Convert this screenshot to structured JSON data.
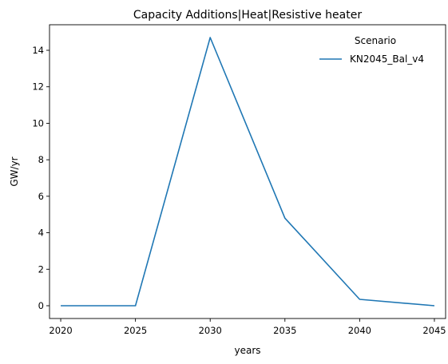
{
  "chart_data": {
    "type": "line",
    "title": "Capacity Additions|Heat|Resistive heater",
    "xlabel": "years",
    "ylabel": "GW/yr",
    "x": [
      2020,
      2025,
      2030,
      2035,
      2040,
      2045
    ],
    "xticks": [
      "2020",
      "2025",
      "2030",
      "2035",
      "2040",
      "2045"
    ],
    "yticks": [
      "0",
      "2",
      "4",
      "6",
      "8",
      "10",
      "12",
      "14"
    ],
    "xlim": [
      2019.25,
      2045.75
    ],
    "ylim": [
      -0.7,
      15.4
    ],
    "grid": false,
    "legend": {
      "title": "Scenario",
      "placement": "top-right"
    },
    "series": [
      {
        "name": "KN2045_Bal_v4",
        "color": "#1f77b4",
        "values": [
          0.0,
          0.0,
          14.7,
          4.8,
          0.35,
          0.0
        ]
      }
    ]
  }
}
